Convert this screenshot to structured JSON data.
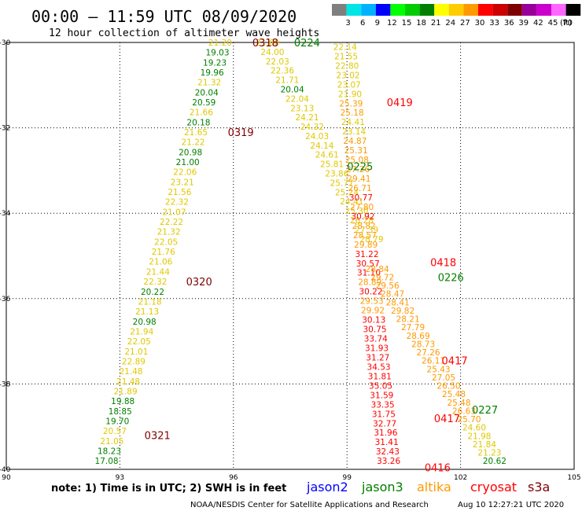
{
  "header": {
    "title": "00:00 – 11:59 UTC 08/09/2020",
    "subtitle": "12 hour collection of altimeter wave heights"
  },
  "colorbar": {
    "unit": "(ft)",
    "bins": [
      {
        "label": "",
        "color": "#7f7f7f"
      },
      {
        "label": "3",
        "color": "#00e5e5"
      },
      {
        "label": "6",
        "color": "#00b2ff"
      },
      {
        "label": "9",
        "color": "#0000ff"
      },
      {
        "label": "12",
        "color": "#00ff00"
      },
      {
        "label": "15",
        "color": "#00cc00"
      },
      {
        "label": "18",
        "color": "#008000"
      },
      {
        "label": "21",
        "color": "#ffff00"
      },
      {
        "label": "24",
        "color": "#ffcc00"
      },
      {
        "label": "27",
        "color": "#ff9900"
      },
      {
        "label": "30",
        "color": "#ff0000"
      },
      {
        "label": "33",
        "color": "#cc0000"
      },
      {
        "label": "36",
        "color": "#800000"
      },
      {
        "label": "39",
        "color": "#990099"
      },
      {
        "label": "42",
        "color": "#cc00cc"
      },
      {
        "label": "45",
        "color": "#ff66ff"
      },
      {
        "label": "70",
        "color": "#000000"
      }
    ]
  },
  "footer": {
    "note": "note:  1) Time is in UTC; 2) SWH is in feet",
    "legend": [
      {
        "label": "jason2",
        "color": "#0000ff"
      },
      {
        "label": "jason3",
        "color": "#008000"
      },
      {
        "label": "altika",
        "color": "#ff9900"
      },
      {
        "label": "cryosat",
        "color": "#ff0000"
      },
      {
        "label": "s3a",
        "color": "#800000"
      }
    ],
    "credit": "NOAA/NESDIS Center for Satellite Applications and Research",
    "timestamp": "Aug 10 12:27:21 UTC 2020"
  },
  "chart_data": {
    "type": "scatter",
    "xlim": [
      90,
      105
    ],
    "ylim": [
      -40,
      -30
    ],
    "x_ticks": [
      "90",
      "93",
      "96",
      "99",
      "102",
      "105"
    ],
    "x_tick_values": [
      90,
      93,
      96,
      99,
      102,
      105
    ],
    "y_ticks": [
      "-30",
      "-32",
      "-34",
      "-36",
      "-38",
      "-40"
    ],
    "y_tick_values": [
      -30,
      -32,
      -34,
      -36,
      -38,
      -40
    ],
    "grid": true,
    "colors": {
      "yellow": "#e0c800",
      "green": "#008000",
      "orange": "#ff9900",
      "red": "#ff0000",
      "maroon": "#800000"
    },
    "pass_labels": [
      {
        "text": "0318",
        "lon": 96.5,
        "lat": -30.0,
        "color": "maroon"
      },
      {
        "text": "0224",
        "lon": 97.6,
        "lat": -30.0,
        "color": "green"
      },
      {
        "text": "0319",
        "lon": 95.85,
        "lat": -32.1,
        "color": "maroon"
      },
      {
        "text": "0320",
        "lon": 94.75,
        "lat": -35.6,
        "color": "maroon"
      },
      {
        "text": "0321",
        "lon": 93.65,
        "lat": -39.2,
        "color": "maroon"
      },
      {
        "text": "0419",
        "lon": 100.05,
        "lat": -31.4,
        "color": "red"
      },
      {
        "text": "0225",
        "lon": 99.0,
        "lat": -32.9,
        "color": "green"
      },
      {
        "text": "0418",
        "lon": 101.2,
        "lat": -35.15,
        "color": "red"
      },
      {
        "text": "0226",
        "lon": 101.4,
        "lat": -35.5,
        "color": "green"
      },
      {
        "text": "0417",
        "lon": 101.5,
        "lat": -37.45,
        "color": "red"
      },
      {
        "text": "0227",
        "lon": 102.3,
        "lat": -38.6,
        "color": "green"
      },
      {
        "text": "0417",
        "lon": 101.3,
        "lat": -38.8,
        "color": "red"
      },
      {
        "text": "0416",
        "lon": 101.05,
        "lat": -39.95,
        "color": "red"
      }
    ],
    "tracks": [
      {
        "name": "0318-0321",
        "start": [
          95.65,
          -30.0
        ],
        "end": [
          92.65,
          -39.8
        ],
        "points": [
          {
            "v": "21.20",
            "c": "yellow"
          },
          {
            "v": "19.03",
            "c": "green"
          },
          {
            "v": "19.23",
            "c": "green"
          },
          {
            "v": "19.96",
            "c": "green"
          },
          {
            "v": "21.32",
            "c": "yellow"
          },
          {
            "v": "20.04",
            "c": "green"
          },
          {
            "v": "20.59",
            "c": "green"
          },
          {
            "v": "21.66",
            "c": "yellow"
          },
          {
            "v": "20.18",
            "c": "green"
          },
          {
            "v": "21.65",
            "c": "yellow"
          },
          {
            "v": "21.22",
            "c": "yellow"
          },
          {
            "v": "20.98",
            "c": "green"
          },
          {
            "v": "21.00",
            "c": "green"
          },
          {
            "v": "22.06",
            "c": "yellow"
          },
          {
            "v": "23.21",
            "c": "yellow"
          },
          {
            "v": "21.56",
            "c": "yellow"
          },
          {
            "v": "22.32",
            "c": "yellow"
          },
          {
            "v": "21.07",
            "c": "yellow"
          },
          {
            "v": "22.22",
            "c": "yellow"
          },
          {
            "v": "21.32",
            "c": "yellow"
          },
          {
            "v": "22.05",
            "c": "yellow"
          },
          {
            "v": "21.76",
            "c": "yellow"
          },
          {
            "v": "21.06",
            "c": "yellow"
          },
          {
            "v": "21.44",
            "c": "yellow"
          },
          {
            "v": "22.32",
            "c": "yellow"
          },
          {
            "v": "20.22",
            "c": "green"
          },
          {
            "v": "21.18",
            "c": "yellow"
          },
          {
            "v": "21.13",
            "c": "yellow"
          },
          {
            "v": "20.98",
            "c": "green"
          },
          {
            "v": "21.94",
            "c": "yellow"
          },
          {
            "v": "22.05",
            "c": "yellow"
          },
          {
            "v": "21.01",
            "c": "yellow"
          },
          {
            "v": "22.89",
            "c": "yellow"
          },
          {
            "v": "21.48",
            "c": "yellow"
          },
          {
            "v": "21.48",
            "c": "yellow"
          },
          {
            "v": "21.89",
            "c": "yellow"
          },
          {
            "v": "19.88",
            "c": "green"
          },
          {
            "v": "18.85",
            "c": "green"
          },
          {
            "v": "19.70",
            "c": "green"
          },
          {
            "v": "20.57",
            "c": "yellow"
          },
          {
            "v": "21.05",
            "c": "yellow"
          },
          {
            "v": "18.23",
            "c": "green"
          },
          {
            "v": "17.08",
            "c": "green"
          }
        ]
      },
      {
        "name": "0224-0225",
        "start": [
          96.9,
          -30.0
        ],
        "end": [
          99.65,
          -34.6
        ],
        "points": [
          {
            "v": "21.60",
            "c": "yellow"
          },
          {
            "v": "24.00",
            "c": "yellow"
          },
          {
            "v": "22.03",
            "c": "yellow"
          },
          {
            "v": "22.36",
            "c": "yellow"
          },
          {
            "v": "21.71",
            "c": "yellow"
          },
          {
            "v": "20.04",
            "c": "green"
          },
          {
            "v": "22.04",
            "c": "yellow"
          },
          {
            "v": "23.13",
            "c": "yellow"
          },
          {
            "v": "24.21",
            "c": "yellow"
          },
          {
            "v": "24.32",
            "c": "yellow"
          },
          {
            "v": "24.03",
            "c": "yellow"
          },
          {
            "v": "24.14",
            "c": "yellow"
          },
          {
            "v": "24.61",
            "c": "yellow"
          },
          {
            "v": "25.81",
            "c": "yellow"
          },
          {
            "v": "23.86",
            "c": "yellow"
          },
          {
            "v": "25.77",
            "c": "yellow"
          },
          {
            "v": "25.24",
            "c": "yellow"
          },
          {
            "v": "24.41",
            "c": "yellow"
          },
          {
            "v": "25.30",
            "c": "yellow"
          },
          {
            "v": "26.28",
            "c": "yellow"
          },
          {
            "v": "27.39",
            "c": "yellow"
          },
          {
            "v": "28.79",
            "c": "yellow"
          }
        ]
      },
      {
        "name": "0419-0416",
        "start": [
          98.95,
          -30.1
        ],
        "end": [
          100.1,
          -39.8
        ],
        "points": [
          {
            "v": "22.14",
            "c": "yellow"
          },
          {
            "v": "21.55",
            "c": "yellow"
          },
          {
            "v": "22.80",
            "c": "yellow"
          },
          {
            "v": "23.02",
            "c": "yellow"
          },
          {
            "v": "23.07",
            "c": "yellow"
          },
          {
            "v": "21.90",
            "c": "yellow"
          },
          {
            "v": "25.39",
            "c": "orange"
          },
          {
            "v": "25.18",
            "c": "orange"
          },
          {
            "v": "24.41",
            "c": "yellow"
          },
          {
            "v": "23.14",
            "c": "yellow"
          },
          {
            "v": "24.87",
            "c": "orange"
          },
          {
            "v": "25.31",
            "c": "orange"
          },
          {
            "v": "25.08",
            "c": "orange"
          },
          {
            "v": "27.26",
            "c": "orange"
          },
          {
            "v": "29.41",
            "c": "orange"
          },
          {
            "v": "26.71",
            "c": "orange"
          },
          {
            "v": "30.77",
            "c": "red"
          },
          {
            "v": "27.80",
            "c": "orange"
          },
          {
            "v": "30.92",
            "c": "red"
          },
          {
            "v": "28.82",
            "c": "orange"
          },
          {
            "v": "28.57",
            "c": "orange"
          },
          {
            "v": "29.89",
            "c": "orange"
          },
          {
            "v": "31.22",
            "c": "red"
          },
          {
            "v": "30.57",
            "c": "red"
          },
          {
            "v": "31.10",
            "c": "red"
          },
          {
            "v": "28.89",
            "c": "orange"
          },
          {
            "v": "30.22",
            "c": "red"
          },
          {
            "v": "29.53",
            "c": "orange"
          },
          {
            "v": "29.92",
            "c": "orange"
          },
          {
            "v": "30.13",
            "c": "red"
          },
          {
            "v": "30.75",
            "c": "red"
          },
          {
            "v": "33.74",
            "c": "red"
          },
          {
            "v": "31.93",
            "c": "red"
          },
          {
            "v": "31.27",
            "c": "red"
          },
          {
            "v": "34.53",
            "c": "red"
          },
          {
            "v": "31.81",
            "c": "red"
          },
          {
            "v": "35.05",
            "c": "red"
          },
          {
            "v": "31.59",
            "c": "red"
          },
          {
            "v": "33.35",
            "c": "red"
          },
          {
            "v": "31.75",
            "c": "red"
          },
          {
            "v": "32.77",
            "c": "red"
          },
          {
            "v": "31.96",
            "c": "red"
          },
          {
            "v": "31.41",
            "c": "red"
          },
          {
            "v": "32.43",
            "c": "red"
          },
          {
            "v": "33.26",
            "c": "red"
          }
        ]
      },
      {
        "name": "0226-0227",
        "start": [
          99.8,
          -35.3
        ],
        "end": [
          102.9,
          -39.8
        ],
        "points": [
          {
            "v": "28.84",
            "c": "orange"
          },
          {
            "v": "29.72",
            "c": "orange"
          },
          {
            "v": "29.56",
            "c": "orange"
          },
          {
            "v": "28.47",
            "c": "orange"
          },
          {
            "v": "28.41",
            "c": "orange"
          },
          {
            "v": "29.82",
            "c": "orange"
          },
          {
            "v": "28.21",
            "c": "orange"
          },
          {
            "v": "27.79",
            "c": "orange"
          },
          {
            "v": "28.69",
            "c": "orange"
          },
          {
            "v": "28.73",
            "c": "orange"
          },
          {
            "v": "27.26",
            "c": "orange"
          },
          {
            "v": "26.11",
            "c": "orange"
          },
          {
            "v": "25.43",
            "c": "orange"
          },
          {
            "v": "27.05",
            "c": "orange"
          },
          {
            "v": "26.50",
            "c": "orange"
          },
          {
            "v": "25.48",
            "c": "orange"
          },
          {
            "v": "25.48",
            "c": "orange"
          },
          {
            "v": "26.63",
            "c": "orange"
          },
          {
            "v": "25.70",
            "c": "orange"
          },
          {
            "v": "24.60",
            "c": "yellow"
          },
          {
            "v": "21.98",
            "c": "yellow"
          },
          {
            "v": "21.84",
            "c": "yellow"
          },
          {
            "v": "21.23",
            "c": "yellow"
          },
          {
            "v": "20.62",
            "c": "green"
          }
        ]
      }
    ]
  }
}
